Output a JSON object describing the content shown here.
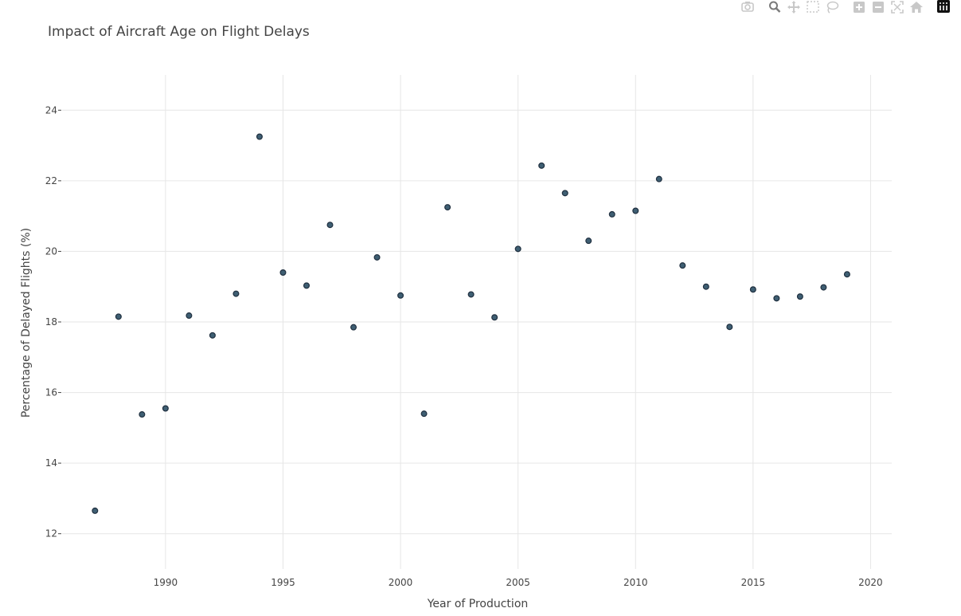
{
  "toolbar": {
    "buttons": [
      {
        "name": "camera-icon",
        "label": "Download plot as a png"
      },
      {
        "name": "zoom-icon",
        "label": "Zoom",
        "active": true
      },
      {
        "name": "pan-icon",
        "label": "Pan"
      },
      {
        "name": "box-select-icon",
        "label": "Box Select"
      },
      {
        "name": "lasso-select-icon",
        "label": "Lasso Select"
      },
      {
        "name": "zoom-in-icon",
        "label": "Zoom in"
      },
      {
        "name": "zoom-out-icon",
        "label": "Zoom out"
      },
      {
        "name": "autoscale-icon",
        "label": "Autoscale"
      },
      {
        "name": "reset-axes-icon",
        "label": "Reset axes"
      },
      {
        "name": "plotly-logo-icon",
        "label": "Produced with Plotly"
      }
    ]
  },
  "colors": {
    "marker_fill": "#3f5f73",
    "marker_edge": "#1f2f3f",
    "grid": "#e6e6e6",
    "text": "#444444",
    "toolbar_icon": "#c8c8c8",
    "toolbar_icon_active": "#7a7a7a"
  },
  "chart_data": {
    "type": "scatter",
    "title": "Impact of Aircraft Age on Flight Delays",
    "xlabel": "Year of Production",
    "ylabel": "Percentage of Delayed Flights (%)",
    "xlim": [
      1985.6,
      2020.9
    ],
    "ylim": [
      11,
      25
    ],
    "xticks": [
      1990,
      1995,
      2000,
      2005,
      2010,
      2015,
      2020
    ],
    "yticks": [
      12,
      14,
      16,
      18,
      20,
      22,
      24
    ],
    "grid": true,
    "legend": "none",
    "x": [
      1987,
      1988,
      1989,
      1990,
      1991,
      1992,
      1993,
      1994,
      1995,
      1996,
      1997,
      1998,
      1999,
      2000,
      2001,
      2002,
      2003,
      2004,
      2005,
      2006,
      2007,
      2008,
      2009,
      2010,
      2011,
      2012,
      2013,
      2014,
      2015,
      2016,
      2017,
      2018,
      2019
    ],
    "y": [
      12.65,
      18.15,
      15.38,
      15.55,
      18.18,
      17.62,
      18.8,
      23.25,
      19.4,
      19.03,
      20.75,
      17.85,
      19.83,
      18.75,
      15.4,
      21.25,
      18.78,
      18.13,
      20.07,
      22.43,
      21.65,
      20.3,
      21.05,
      21.15,
      22.05,
      19.6,
      19.0,
      17.86,
      18.92,
      18.67,
      18.72,
      18.98,
      19.35
    ]
  }
}
